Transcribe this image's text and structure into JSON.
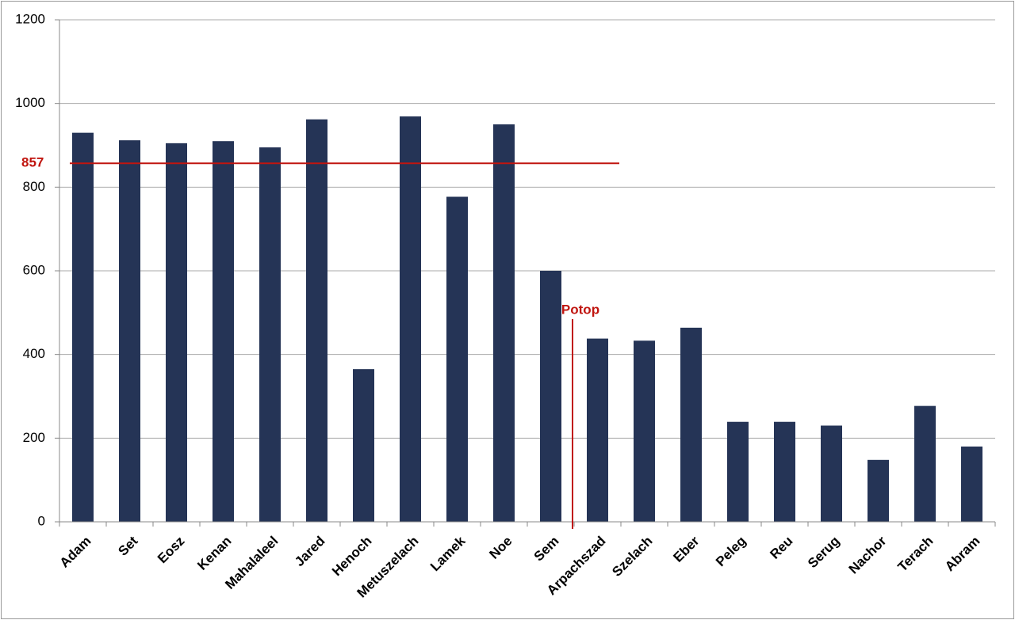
{
  "chart_data": {
    "type": "bar",
    "categories": [
      "Adam",
      "Set",
      "Eosz",
      "Kenan",
      "Mahalaleel",
      "Jared",
      "Henoch",
      "Metuszelach",
      "Lamek",
      "Noe",
      "Sem",
      "Arpachszad",
      "Szelach",
      "Eber",
      "Peleg",
      "Reu",
      "Serug",
      "Nachor",
      "Terach",
      "Abram"
    ],
    "values": [
      930,
      912,
      905,
      910,
      895,
      962,
      365,
      969,
      777,
      950,
      600,
      438,
      433,
      464,
      239,
      239,
      230,
      148,
      277,
      180
    ],
    "color": "#253456",
    "ylim": [
      0,
      1200
    ],
    "yticks": [
      0,
      200,
      400,
      600,
      800,
      1000,
      1200
    ],
    "grid": true,
    "reference_line": 857,
    "reference_color": "#c0150f",
    "annotation": "Potop"
  }
}
